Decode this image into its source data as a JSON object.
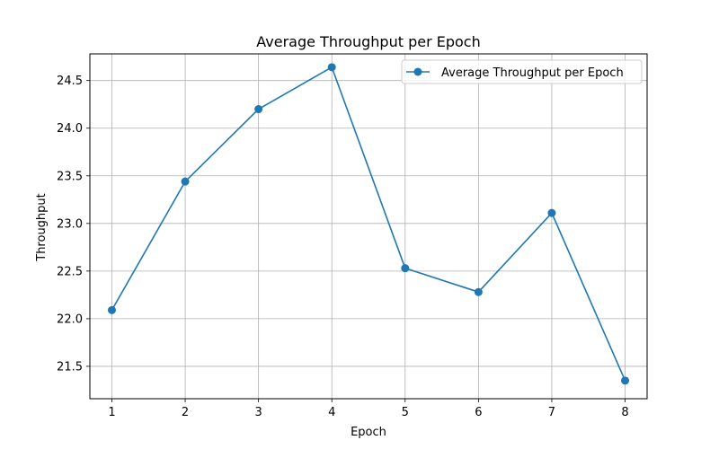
{
  "chart_data": {
    "type": "line",
    "title": "Average Throughput per Epoch",
    "xlabel": "Epoch",
    "ylabel": "Throughput",
    "x": [
      1,
      2,
      3,
      4,
      5,
      6,
      7,
      8
    ],
    "x_ticks": [
      "1",
      "2",
      "3",
      "4",
      "5",
      "6",
      "7",
      "8"
    ],
    "y_ticks": [
      "21.5",
      "22.0",
      "22.5",
      "23.0",
      "23.5",
      "24.0",
      "24.5"
    ],
    "xlim": [
      0.7,
      8.3
    ],
    "ylim": [
      21.16,
      24.78
    ],
    "grid": true,
    "legend_position": "top-right",
    "series": [
      {
        "name": "Average Throughput per Epoch",
        "color": "#1f77b4",
        "marker": "circle",
        "values": [
          22.09,
          23.44,
          24.2,
          24.64,
          22.53,
          22.28,
          23.11,
          21.35
        ]
      }
    ]
  }
}
